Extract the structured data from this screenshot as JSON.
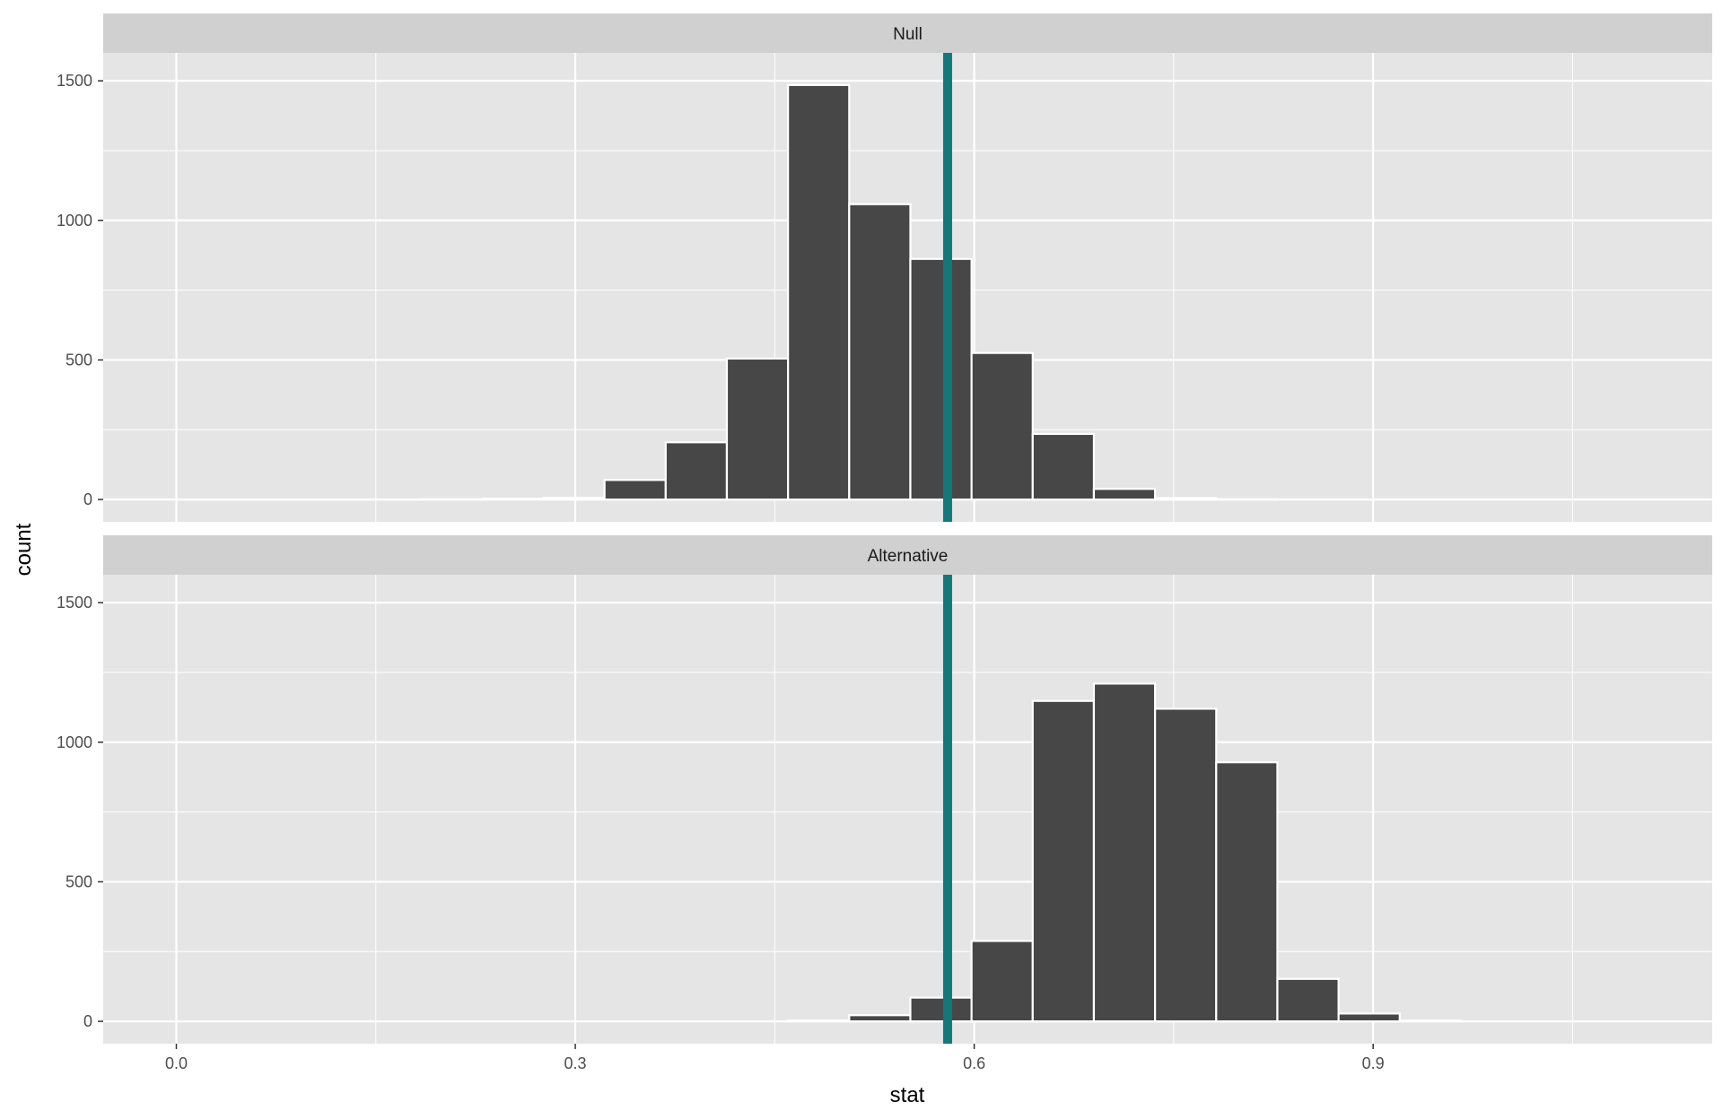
{
  "chart_data": {
    "type": "bar",
    "xlabel": "stat",
    "ylabel": "count",
    "xlim": [
      -0.055,
      1.155
    ],
    "ylim": [
      -80,
      1600
    ],
    "x_ticks": [
      0.0,
      0.3,
      0.6,
      0.9
    ],
    "x_tick_labels": [
      "0.0",
      "0.3",
      "0.6",
      "0.9"
    ],
    "y_ticks": [
      0,
      500,
      1000,
      1500
    ],
    "y_tick_labels": [
      "0",
      "500",
      "1000",
      "1500"
    ],
    "bin_width": 0.046,
    "observed_stat": 0.58,
    "colors": {
      "panel_bg": "#e5e5e5",
      "strip_bg": "#d0d0d0",
      "grid": "#ffffff",
      "bar_fill": "#474747",
      "bar_outline": "#ffffff",
      "vline": "#15777a"
    },
    "grid": true,
    "panels": [
      {
        "label": "Null",
        "bins": [
          {
            "x": 0.023,
            "count": 0
          },
          {
            "x": 0.069,
            "count": 0
          },
          {
            "x": 0.115,
            "count": 0
          },
          {
            "x": 0.161,
            "count": 0
          },
          {
            "x": 0.207,
            "count": 1
          },
          {
            "x": 0.253,
            "count": 3
          },
          {
            "x": 0.299,
            "count": 6
          },
          {
            "x": 0.345,
            "count": 70
          },
          {
            "x": 0.391,
            "count": 205
          },
          {
            "x": 0.437,
            "count": 505
          },
          {
            "x": 0.483,
            "count": 1485
          },
          {
            "x": 0.529,
            "count": 1058
          },
          {
            "x": 0.575,
            "count": 862
          },
          {
            "x": 0.621,
            "count": 525
          },
          {
            "x": 0.667,
            "count": 235
          },
          {
            "x": 0.713,
            "count": 38
          },
          {
            "x": 0.759,
            "count": 5
          },
          {
            "x": 0.805,
            "count": 1
          }
        ]
      },
      {
        "label": "Alternative",
        "bins": [
          {
            "x": 0.483,
            "count": 3
          },
          {
            "x": 0.529,
            "count": 22
          },
          {
            "x": 0.575,
            "count": 85
          },
          {
            "x": 0.621,
            "count": 288
          },
          {
            "x": 0.667,
            "count": 1148
          },
          {
            "x": 0.713,
            "count": 1210
          },
          {
            "x": 0.759,
            "count": 1120
          },
          {
            "x": 0.805,
            "count": 928
          },
          {
            "x": 0.851,
            "count": 152
          },
          {
            "x": 0.897,
            "count": 28
          },
          {
            "x": 0.943,
            "count": 3
          }
        ]
      }
    ]
  }
}
